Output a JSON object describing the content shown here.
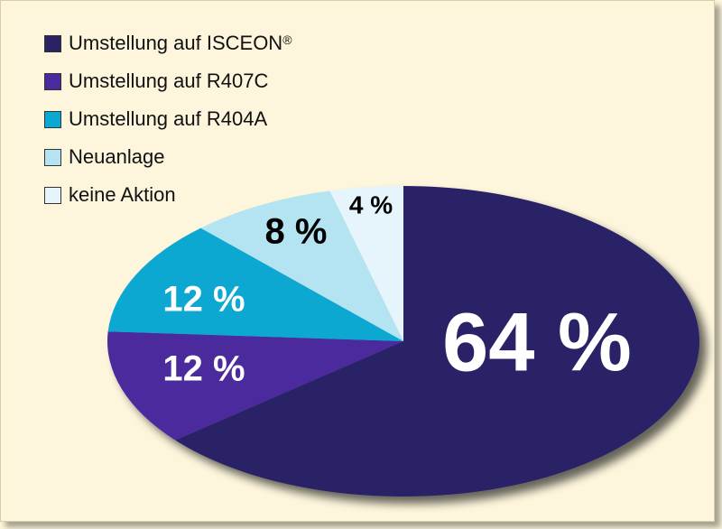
{
  "chart_data": {
    "type": "pie",
    "title": "",
    "legend_position": "top-left",
    "slices": [
      {
        "name": "Umstellung auf ISCEON",
        "name_sup": "®",
        "value": 64,
        "label": "64 %",
        "color": "#2b2266",
        "label_color": "#ffffff"
      },
      {
        "name": "Umstellung auf R407C",
        "name_sup": "",
        "value": 12,
        "label": "12 %",
        "color": "#4b2a9e",
        "label_color": "#ffffff"
      },
      {
        "name": "Umstellung auf R404A",
        "name_sup": "",
        "value": 12,
        "label": "12 %",
        "color": "#0aa8d2",
        "label_color": "#ffffff"
      },
      {
        "name": "Neuanlage",
        "name_sup": "",
        "value": 8,
        "label": "8 %",
        "color": "#b4e4f2",
        "label_color": "#000000"
      },
      {
        "name": "keine Aktion",
        "name_sup": "",
        "value": 4,
        "label": "4 %",
        "color": "#e6f5fb",
        "label_color": "#000000"
      }
    ]
  }
}
